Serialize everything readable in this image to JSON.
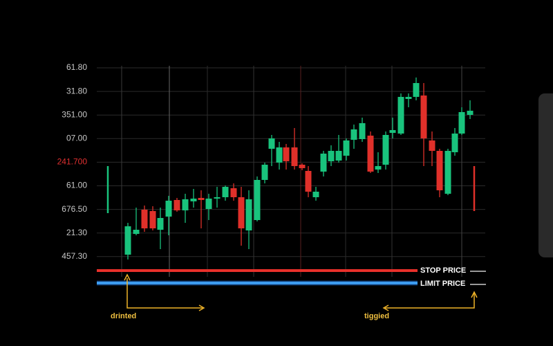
{
  "axis_labels": [
    "61.80",
    "31.80",
    "351.00",
    "07.00",
    "241.700",
    "61.00",
    "676.50",
    "21.30",
    "457.30"
  ],
  "order_lines": [
    {
      "label": "STOP PRICE"
    },
    {
      "label": "LIMIT PRICE"
    }
  ],
  "annotations": [
    "drinted",
    "tiggied"
  ]
}
